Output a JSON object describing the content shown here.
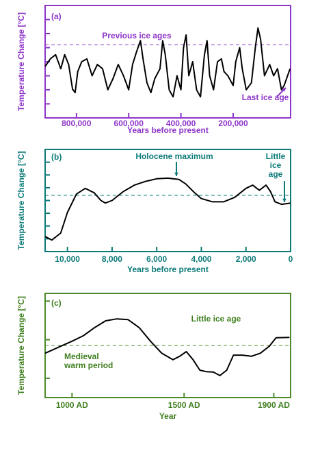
{
  "chart_data": [
    {
      "type": "line",
      "panel_label": "(a)",
      "y_label": "Temperature Change [°C]",
      "x_label": "Years before present",
      "color": "#000000",
      "axis_color": "#8e35c9",
      "text_color": "#8e35c9",
      "xlim": [
        920000,
        -20000
      ],
      "ylim": [
        0,
        8
      ],
      "xticks": [
        {
          "value": 800000,
          "label": "800,000"
        },
        {
          "value": 600000,
          "label": "600,000"
        },
        {
          "value": 400000,
          "label": "400,000"
        },
        {
          "value": 200000,
          "label": "200,000"
        }
      ],
      "yticks": [
        1,
        2,
        3,
        4,
        5,
        6,
        7
      ],
      "reference_line": 5.2,
      "annotations": [
        {
          "text": [
            "Previous ice ages"
          ]
        },
        {
          "text": [
            "Last ice age"
          ]
        }
      ],
      "x": [
        920000,
        900000,
        880000,
        860000,
        845000,
        830000,
        815000,
        805000,
        795000,
        780000,
        760000,
        740000,
        720000,
        700000,
        680000,
        660000,
        640000,
        620000,
        600000,
        585000,
        570000,
        555000,
        545000,
        530000,
        515000,
        500000,
        480000,
        470000,
        460000,
        445000,
        430000,
        415000,
        400000,
        390000,
        380000,
        370000,
        355000,
        340000,
        325000,
        310000,
        300000,
        290000,
        275000,
        260000,
        245000,
        235000,
        220000,
        200000,
        190000,
        175000,
        165000,
        150000,
        130000,
        115000,
        105000,
        95000,
        80000,
        60000,
        45000,
        30000,
        15000,
        5000,
        -18000
      ],
      "values": [
        3.66,
        4.2,
        4.5,
        3.5,
        4.5,
        3.8,
        2.05,
        1.8,
        3.3,
        4.0,
        4.2,
        3.0,
        3.8,
        3.5,
        2.0,
        2.8,
        3.8,
        3.0,
        2.0,
        3.8,
        4.7,
        5.5,
        4.2,
        2.5,
        1.8,
        2.8,
        3.5,
        5.5,
        4.5,
        2.0,
        1.5,
        3.0,
        2.0,
        5.0,
        5.9,
        3.0,
        4.0,
        2.0,
        1.5,
        4.5,
        5.5,
        3.0,
        2.0,
        4.0,
        4.2,
        3.3,
        3.0,
        2.3,
        4.0,
        5.0,
        3.5,
        2.0,
        2.5,
        5.0,
        6.4,
        5.6,
        3.0,
        3.8,
        3.0,
        3.5,
        2.0,
        2.3,
        3.5
      ]
    },
    {
      "type": "line",
      "panel_label": "(b)",
      "y_label": "Temperature Change [°C]",
      "x_label": "Years before present",
      "color": "#000000",
      "axis_color": "#0b7a78",
      "text_color": "#0b7a78",
      "xlim": [
        11000,
        0
      ],
      "ylim": [
        0,
        8
      ],
      "xticks": [
        {
          "value": 10000,
          "label": "10,000"
        },
        {
          "value": 8000,
          "label": "8,000"
        },
        {
          "value": 6000,
          "label": "6,000"
        },
        {
          "value": 4000,
          "label": "4,000"
        },
        {
          "value": 2000,
          "label": "2,000"
        },
        0
      ],
      "yticks": [
        1,
        2,
        3,
        4,
        5,
        6,
        7
      ],
      "reference_line": 4.4,
      "annotations": [
        {
          "text": [
            "Holocene maximum"
          ]
        },
        {
          "text": [
            "Little",
            "ice",
            "age"
          ]
        }
      ],
      "x": [
        11000,
        10700,
        10300,
        10000,
        9600,
        9200,
        8800,
        8500,
        8300,
        8000,
        7500,
        7000,
        6500,
        6000,
        5500,
        5000,
        4700,
        4300,
        4000,
        3500,
        3000,
        2500,
        2000,
        1700,
        1400,
        1100,
        900,
        700,
        400,
        0
      ],
      "values": [
        1.18,
        0.9,
        1.45,
        3.06,
        4.5,
        4.95,
        4.6,
        4.0,
        3.8,
        4.0,
        4.7,
        5.2,
        5.5,
        5.7,
        5.75,
        5.65,
        5.3,
        4.6,
        4.15,
        3.9,
        3.9,
        4.25,
        4.95,
        5.2,
        4.8,
        5.2,
        4.7,
        3.9,
        3.7,
        3.8
      ]
    },
    {
      "type": "line",
      "panel_label": "(c)",
      "y_label": "Temperature Change [°C]",
      "x_label": "Year",
      "color": "#000000",
      "axis_color": "#4a8a2a",
      "text_color": "#3f7f1f",
      "xlim": [
        880,
        1975
      ],
      "ylim": [
        0,
        2.7
      ],
      "xticks": [
        {
          "value": 1000,
          "label": "1000 AD"
        },
        {
          "value": 1500,
          "label": "1500 AD"
        },
        {
          "value": 1900,
          "label": "1900 AD"
        }
      ],
      "yticks": [
        0.5,
        1.5,
        2.5
      ],
      "reference_line": 1.35,
      "annotations": [
        {
          "text": [
            "Little ice age"
          ]
        },
        {
          "text": [
            "Medieval",
            "warm period"
          ]
        }
      ],
      "x": [
        880,
        950,
        1000,
        1050,
        1100,
        1150,
        1200,
        1250,
        1300,
        1350,
        1400,
        1450,
        1480,
        1510,
        1540,
        1570,
        1600,
        1630,
        1660,
        1690,
        1720,
        1760,
        1800,
        1840,
        1880,
        1910,
        1970
      ],
      "values": [
        1.15,
        1.33,
        1.46,
        1.6,
        1.81,
        1.99,
        2.04,
        2.02,
        1.81,
        1.46,
        1.15,
        0.98,
        1.07,
        1.19,
        0.98,
        0.71,
        0.67,
        0.66,
        0.57,
        0.71,
        1.1,
        1.1,
        1.07,
        1.15,
        1.33,
        1.55,
        1.56
      ]
    }
  ]
}
